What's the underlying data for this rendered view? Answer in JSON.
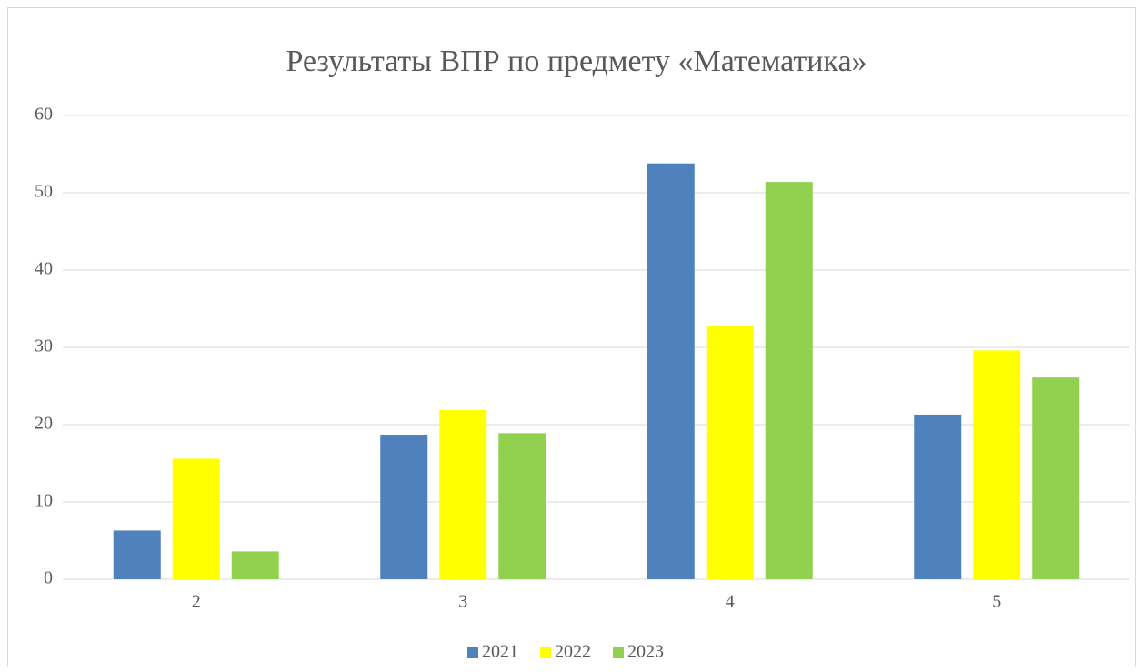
{
  "chart_data": {
    "type": "bar",
    "title": "Результаты ВПР по предмету «Математика»",
    "categories": [
      "2",
      "3",
      "4",
      "5"
    ],
    "series": [
      {
        "name": "2021",
        "color": "#4f81bd",
        "values": [
          6.3,
          18.7,
          53.8,
          21.3
        ]
      },
      {
        "name": "2022",
        "color": "#ffff00",
        "values": [
          15.6,
          21.9,
          32.8,
          29.6
        ]
      },
      {
        "name": "2023",
        "color": "#92d050",
        "values": [
          3.6,
          18.9,
          51.4,
          26.1
        ]
      }
    ],
    "ylim": [
      0,
      60
    ],
    "yticks": [
      0,
      10,
      20,
      30,
      40,
      50,
      60
    ],
    "grid": true,
    "legend": "bottom"
  }
}
